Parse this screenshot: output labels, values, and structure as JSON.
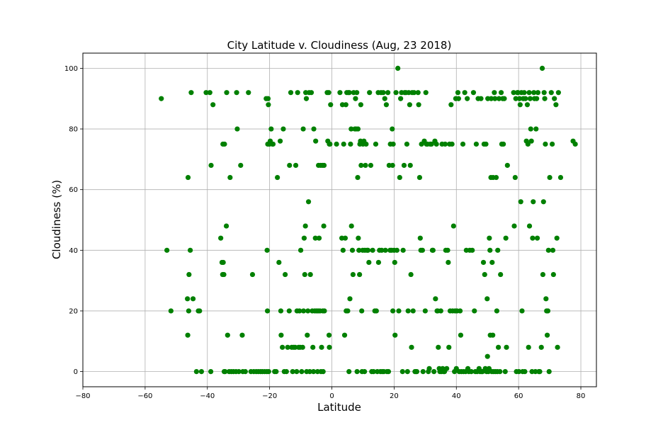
{
  "chart_data": {
    "type": "scatter",
    "title": "City Latitude v. Cloudiness (Aug, 23 2018)",
    "xlabel": "Latitude",
    "ylabel": "Cloudiness (%)",
    "xlim": [
      -80,
      85
    ],
    "ylim": [
      -5,
      105
    ],
    "xticks": [
      -80,
      -60,
      -40,
      -20,
      0,
      20,
      40,
      60,
      80
    ],
    "yticks": [
      0,
      20,
      40,
      60,
      80,
      100
    ],
    "grid": true,
    "marker_color": "#008000",
    "points": [
      [
        -54.8,
        90
      ],
      [
        -53,
        40
      ],
      [
        -51.7,
        20
      ],
      [
        -46.2,
        64
      ],
      [
        -45.9,
        32
      ],
      [
        -45.5,
        40
      ],
      [
        -45.2,
        92
      ],
      [
        -44.6,
        24
      ],
      [
        -46.4,
        24
      ],
      [
        -46.3,
        12
      ],
      [
        -46,
        20
      ],
      [
        -43.5,
        0
      ],
      [
        -42.9,
        20
      ],
      [
        -42.5,
        20
      ],
      [
        -41.9,
        0
      ],
      [
        -40.4,
        92
      ],
      [
        -39.2,
        92
      ],
      [
        -38.8,
        68
      ],
      [
        -38.9,
        0
      ],
      [
        -38.2,
        88
      ],
      [
        -35.7,
        44
      ],
      [
        -35.3,
        36
      ],
      [
        -35.1,
        32
      ],
      [
        -35,
        75
      ],
      [
        -34.9,
        36
      ],
      [
        -34.7,
        32
      ],
      [
        -34.5,
        75
      ],
      [
        -34.6,
        0
      ],
      [
        -34.3,
        0
      ],
      [
        -33.9,
        48
      ],
      [
        -33.8,
        92
      ],
      [
        -33.5,
        12
      ],
      [
        -33,
        0
      ],
      [
        -32.7,
        64
      ],
      [
        -32.3,
        0
      ],
      [
        -31.6,
        0
      ],
      [
        -30.8,
        0
      ],
      [
        -30.6,
        92
      ],
      [
        -30.4,
        80
      ],
      [
        -29.9,
        0
      ],
      [
        -29.3,
        68
      ],
      [
        -28.8,
        12
      ],
      [
        -28.6,
        0
      ],
      [
        -27.8,
        0
      ],
      [
        -26.8,
        92
      ],
      [
        -26,
        0
      ],
      [
        -25.5,
        32
      ],
      [
        -25.1,
        0
      ],
      [
        -24.3,
        0
      ],
      [
        -23.6,
        0
      ],
      [
        -22.9,
        0
      ],
      [
        -22.3,
        0
      ],
      [
        -21.6,
        0
      ],
      [
        -21.1,
        90
      ],
      [
        -20.9,
        0
      ],
      [
        -20.7,
        20
      ],
      [
        -20.8,
        40
      ],
      [
        -20.6,
        75
      ],
      [
        -20.5,
        90
      ],
      [
        -20.4,
        88
      ],
      [
        -20.3,
        0
      ],
      [
        -20.1,
        75
      ],
      [
        -19.8,
        76
      ],
      [
        -19.5,
        80
      ],
      [
        -19.1,
        75
      ],
      [
        -18.9,
        75
      ],
      [
        -18.4,
        0
      ],
      [
        -17.9,
        0
      ],
      [
        -17.5,
        64
      ],
      [
        -17,
        36
      ],
      [
        -16.6,
        76
      ],
      [
        -16.4,
        20
      ],
      [
        -16.3,
        12
      ],
      [
        -15.9,
        8
      ],
      [
        -15.6,
        80
      ],
      [
        -15.3,
        0
      ],
      [
        -15,
        32
      ],
      [
        -14.6,
        0
      ],
      [
        -14.2,
        8
      ],
      [
        -13.7,
        20
      ],
      [
        -13.6,
        68
      ],
      [
        -13.2,
        92
      ],
      [
        -12.9,
        8
      ],
      [
        -12.6,
        0
      ],
      [
        -12.3,
        8
      ],
      [
        -11.8,
        8
      ],
      [
        -11.6,
        68
      ],
      [
        -11.3,
        0
      ],
      [
        -11.2,
        20
      ],
      [
        -11,
        92
      ],
      [
        -10.7,
        8
      ],
      [
        -10.4,
        20
      ],
      [
        -10.2,
        8
      ],
      [
        -10,
        40
      ],
      [
        -9.7,
        0
      ],
      [
        -9.4,
        8
      ],
      [
        -9.1,
        20
      ],
      [
        -9.2,
        80
      ],
      [
        -8.9,
        44
      ],
      [
        -8.7,
        32
      ],
      [
        -8.5,
        48
      ],
      [
        -8.4,
        92
      ],
      [
        -8.2,
        90
      ],
      [
        -8.1,
        0
      ],
      [
        -7.9,
        12
      ],
      [
        -7.7,
        20
      ],
      [
        -7.5,
        56
      ],
      [
        -7.3,
        92
      ],
      [
        -7.1,
        0
      ],
      [
        -6.9,
        32
      ],
      [
        -6.6,
        92
      ],
      [
        -6.3,
        20
      ],
      [
        -6.1,
        8
      ],
      [
        -5.9,
        0
      ],
      [
        -5.8,
        80
      ],
      [
        -5.5,
        20
      ],
      [
        -5.3,
        44
      ],
      [
        -5.2,
        76
      ],
      [
        -4.9,
        20
      ],
      [
        -4.6,
        0
      ],
      [
        -4.4,
        20
      ],
      [
        -4.3,
        68
      ],
      [
        -4.1,
        44
      ],
      [
        -3.8,
        20
      ],
      [
        -3.6,
        68
      ],
      [
        -3.5,
        0
      ],
      [
        -3.3,
        8
      ],
      [
        -3,
        68
      ],
      [
        -2.8,
        0
      ],
      [
        -2.6,
        48
      ],
      [
        -2.9,
        20
      ],
      [
        -2.5,
        68
      ],
      [
        -2.4,
        20
      ],
      [
        -1.5,
        92
      ],
      [
        -1.3,
        76
      ],
      [
        -1,
        92
      ],
      [
        -0.9,
        12
      ],
      [
        -0.8,
        8
      ],
      [
        -0.8,
        75
      ],
      [
        -0.6,
        75
      ],
      [
        -0.4,
        88
      ],
      [
        1.5,
        75
      ],
      [
        2.6,
        92
      ],
      [
        3.2,
        44
      ],
      [
        3.4,
        88
      ],
      [
        3.6,
        40
      ],
      [
        3.8,
        75
      ],
      [
        4.1,
        12
      ],
      [
        4.3,
        44
      ],
      [
        4.5,
        88
      ],
      [
        4.6,
        20
      ],
      [
        4.8,
        92
      ],
      [
        5.1,
        20
      ],
      [
        5.3,
        92
      ],
      [
        5.5,
        0
      ],
      [
        5.6,
        92
      ],
      [
        5.8,
        24
      ],
      [
        6,
        75
      ],
      [
        6.2,
        80
      ],
      [
        6.3,
        48
      ],
      [
        6.6,
        40
      ],
      [
        6.8,
        32
      ],
      [
        7,
        92
      ],
      [
        7.4,
        80
      ],
      [
        7.6,
        90
      ],
      [
        7.8,
        80
      ],
      [
        8,
        92
      ],
      [
        8.1,
        0
      ],
      [
        8.3,
        64
      ],
      [
        8.4,
        80
      ],
      [
        8.5,
        44
      ],
      [
        8.7,
        40
      ],
      [
        8.9,
        32
      ],
      [
        9,
        75
      ],
      [
        9.2,
        76
      ],
      [
        9.3,
        88
      ],
      [
        9.4,
        68
      ],
      [
        9.6,
        20
      ],
      [
        9.7,
        0
      ],
      [
        9.9,
        40
      ],
      [
        10,
        75
      ],
      [
        10.3,
        76
      ],
      [
        10.5,
        0
      ],
      [
        10.6,
        40
      ],
      [
        10.8,
        68
      ],
      [
        11,
        75
      ],
      [
        11.3,
        40
      ],
      [
        11.6,
        40
      ],
      [
        11.9,
        36
      ],
      [
        12.1,
        92
      ],
      [
        12.5,
        68
      ],
      [
        12.8,
        0
      ],
      [
        13.1,
        40
      ],
      [
        13.4,
        0
      ],
      [
        13.8,
        20
      ],
      [
        14.1,
        75
      ],
      [
        14.3,
        20
      ],
      [
        14.6,
        0
      ],
      [
        14.9,
        92
      ],
      [
        15,
        36
      ],
      [
        15.3,
        40
      ],
      [
        15.6,
        0
      ],
      [
        15.8,
        92
      ],
      [
        16,
        40
      ],
      [
        16.2,
        0
      ],
      [
        16.5,
        92
      ],
      [
        16.7,
        0
      ],
      [
        17,
        90
      ],
      [
        17.2,
        40
      ],
      [
        17.5,
        88
      ],
      [
        17.7,
        0
      ],
      [
        18,
        92
      ],
      [
        18.2,
        0
      ],
      [
        18.4,
        68
      ],
      [
        18.7,
        40
      ],
      [
        18.8,
        75
      ],
      [
        19.2,
        40
      ],
      [
        19.4,
        80
      ],
      [
        19.6,
        20
      ],
      [
        19.5,
        68
      ],
      [
        19.7,
        75
      ],
      [
        20,
        40
      ],
      [
        20.2,
        36
      ],
      [
        20.3,
        12
      ],
      [
        20.6,
        92
      ],
      [
        20.9,
        40
      ],
      [
        21.2,
        100
      ],
      [
        21.5,
        20
      ],
      [
        21.8,
        64
      ],
      [
        22.1,
        90
      ],
      [
        22.4,
        92
      ],
      [
        22.7,
        0
      ],
      [
        22.9,
        40
      ],
      [
        23.2,
        68
      ],
      [
        23.4,
        92
      ],
      [
        23.8,
        92
      ],
      [
        24.1,
        75
      ],
      [
        24.3,
        0
      ],
      [
        24.5,
        20
      ],
      [
        24.7,
        92
      ],
      [
        25,
        88
      ],
      [
        25.2,
        68
      ],
      [
        25.4,
        32
      ],
      [
        25.6,
        8
      ],
      [
        25.8,
        92
      ],
      [
        26.1,
        20
      ],
      [
        26.4,
        92
      ],
      [
        26.7,
        0
      ],
      [
        27,
        0
      ],
      [
        27.3,
        0
      ],
      [
        27.7,
        92
      ],
      [
        27.9,
        88
      ],
      [
        28.2,
        64
      ],
      [
        28.4,
        44
      ],
      [
        28.6,
        40
      ],
      [
        28.8,
        75
      ],
      [
        29.1,
        40
      ],
      [
        29.3,
        0
      ],
      [
        29.7,
        76
      ],
      [
        30,
        20
      ],
      [
        30.2,
        92
      ],
      [
        30.4,
        75
      ],
      [
        30.7,
        75
      ],
      [
        31,
        0
      ],
      [
        31.3,
        1
      ],
      [
        31.6,
        75
      ],
      [
        32,
        75
      ],
      [
        32.3,
        40
      ],
      [
        32.5,
        40
      ],
      [
        32.8,
        0
      ],
      [
        33.1,
        76
      ],
      [
        33.3,
        24
      ],
      [
        33.6,
        75
      ],
      [
        33.8,
        20
      ],
      [
        34,
        20
      ],
      [
        34.2,
        8
      ],
      [
        34.5,
        1
      ],
      [
        34.7,
        0
      ],
      [
        35,
        20
      ],
      [
        35.2,
        0
      ],
      [
        35.4,
        75
      ],
      [
        35.6,
        1
      ],
      [
        35.9,
        0
      ],
      [
        36.2,
        0
      ],
      [
        36.4,
        75
      ],
      [
        36.6,
        40
      ],
      [
        36.9,
        1
      ],
      [
        37.2,
        40
      ],
      [
        37.4,
        36
      ],
      [
        37.6,
        8
      ],
      [
        37.8,
        75
      ],
      [
        38,
        20
      ],
      [
        38.3,
        88
      ],
      [
        38.6,
        75
      ],
      [
        38.8,
        20
      ],
      [
        39.1,
        48
      ],
      [
        39.4,
        0
      ],
      [
        39.6,
        20
      ],
      [
        39.8,
        90
      ],
      [
        40,
        1
      ],
      [
        40.2,
        20
      ],
      [
        40.5,
        92
      ],
      [
        40.7,
        90
      ],
      [
        40.9,
        0
      ],
      [
        41.2,
        20
      ],
      [
        41.4,
        12
      ],
      [
        41.6,
        0
      ],
      [
        42.1,
        75
      ],
      [
        42.3,
        0
      ],
      [
        42.7,
        92
      ],
      [
        43,
        0
      ],
      [
        43.2,
        40
      ],
      [
        43.5,
        90
      ],
      [
        43.7,
        1
      ],
      [
        44,
        0
      ],
      [
        44.3,
        40
      ],
      [
        44.8,
        0
      ],
      [
        45.1,
        40
      ],
      [
        45.5,
        92
      ],
      [
        45.8,
        20
      ],
      [
        46.1,
        0
      ],
      [
        46.4,
        75
      ],
      [
        46.7,
        0
      ],
      [
        47,
        90
      ],
      [
        47.3,
        1
      ],
      [
        47.6,
        0
      ],
      [
        47.9,
        90
      ],
      [
        48.1,
        0
      ],
      [
        48.4,
        0
      ],
      [
        48.7,
        36
      ],
      [
        48.9,
        75
      ],
      [
        49.1,
        32
      ],
      [
        49.3,
        1
      ],
      [
        49.5,
        75
      ],
      [
        49.7,
        0
      ],
      [
        49.9,
        24
      ],
      [
        50,
        5
      ],
      [
        50.1,
        90
      ],
      [
        50.3,
        0
      ],
      [
        50.5,
        1
      ],
      [
        50.6,
        44
      ],
      [
        50.8,
        40
      ],
      [
        50.9,
        12
      ],
      [
        51.1,
        64
      ],
      [
        51.2,
        90
      ],
      [
        51.4,
        0
      ],
      [
        51.5,
        36
      ],
      [
        51.7,
        12
      ],
      [
        51.8,
        64
      ],
      [
        52,
        0
      ],
      [
        52.2,
        92
      ],
      [
        52.4,
        90
      ],
      [
        52.6,
        0
      ],
      [
        52.8,
        64
      ],
      [
        53,
        20
      ],
      [
        53.2,
        0
      ],
      [
        53.3,
        40
      ],
      [
        53.5,
        8
      ],
      [
        53.7,
        90
      ],
      [
        54,
        0
      ],
      [
        54.2,
        32
      ],
      [
        54.4,
        92
      ],
      [
        54.6,
        75
      ],
      [
        54.9,
        90
      ],
      [
        55.1,
        75
      ],
      [
        55.4,
        90
      ],
      [
        55.7,
        0
      ],
      [
        55.9,
        44
      ],
      [
        56.1,
        8
      ],
      [
        56.4,
        68
      ],
      [
        58.4,
        92
      ],
      [
        58.6,
        48
      ],
      [
        58.9,
        64
      ],
      [
        59.1,
        90
      ],
      [
        59.3,
        0
      ],
      [
        59.6,
        92
      ],
      [
        59.8,
        92
      ],
      [
        60.1,
        0
      ],
      [
        60.3,
        90
      ],
      [
        60.5,
        88
      ],
      [
        60.7,
        56
      ],
      [
        60.9,
        92
      ],
      [
        61.1,
        20
      ],
      [
        61.3,
        0
      ],
      [
        61.5,
        90
      ],
      [
        61.8,
        92
      ],
      [
        62,
        0
      ],
      [
        62.2,
        90
      ],
      [
        62.5,
        76
      ],
      [
        62.8,
        88
      ],
      [
        63,
        75
      ],
      [
        63.2,
        8
      ],
      [
        63.4,
        92
      ],
      [
        63.5,
        48
      ],
      [
        63.7,
        90
      ],
      [
        63.9,
        80
      ],
      [
        64.1,
        76
      ],
      [
        64.3,
        0
      ],
      [
        64.5,
        44
      ],
      [
        64.7,
        56
      ],
      [
        64.9,
        92
      ],
      [
        65.1,
        90
      ],
      [
        65.4,
        0
      ],
      [
        65.6,
        80
      ],
      [
        65.8,
        90
      ],
      [
        66,
        44
      ],
      [
        66.2,
        92
      ],
      [
        66.5,
        0
      ],
      [
        66.8,
        0
      ],
      [
        67.3,
        8
      ],
      [
        67.6,
        100
      ],
      [
        67.8,
        32
      ],
      [
        68,
        56
      ],
      [
        68.2,
        92
      ],
      [
        68.4,
        90
      ],
      [
        68.6,
        75
      ],
      [
        68.8,
        24
      ],
      [
        69,
        20
      ],
      [
        69.2,
        12
      ],
      [
        69.4,
        20
      ],
      [
        69.6,
        40
      ],
      [
        69.8,
        0
      ],
      [
        70,
        64
      ],
      [
        70.5,
        92
      ],
      [
        70.8,
        75
      ],
      [
        71,
        40
      ],
      [
        71.2,
        32
      ],
      [
        71.5,
        90
      ],
      [
        72,
        88
      ],
      [
        72.3,
        44
      ],
      [
        72.5,
        8
      ],
      [
        72.8,
        92
      ],
      [
        73.5,
        64
      ],
      [
        77.5,
        76
      ],
      [
        78.2,
        75
      ]
    ]
  }
}
